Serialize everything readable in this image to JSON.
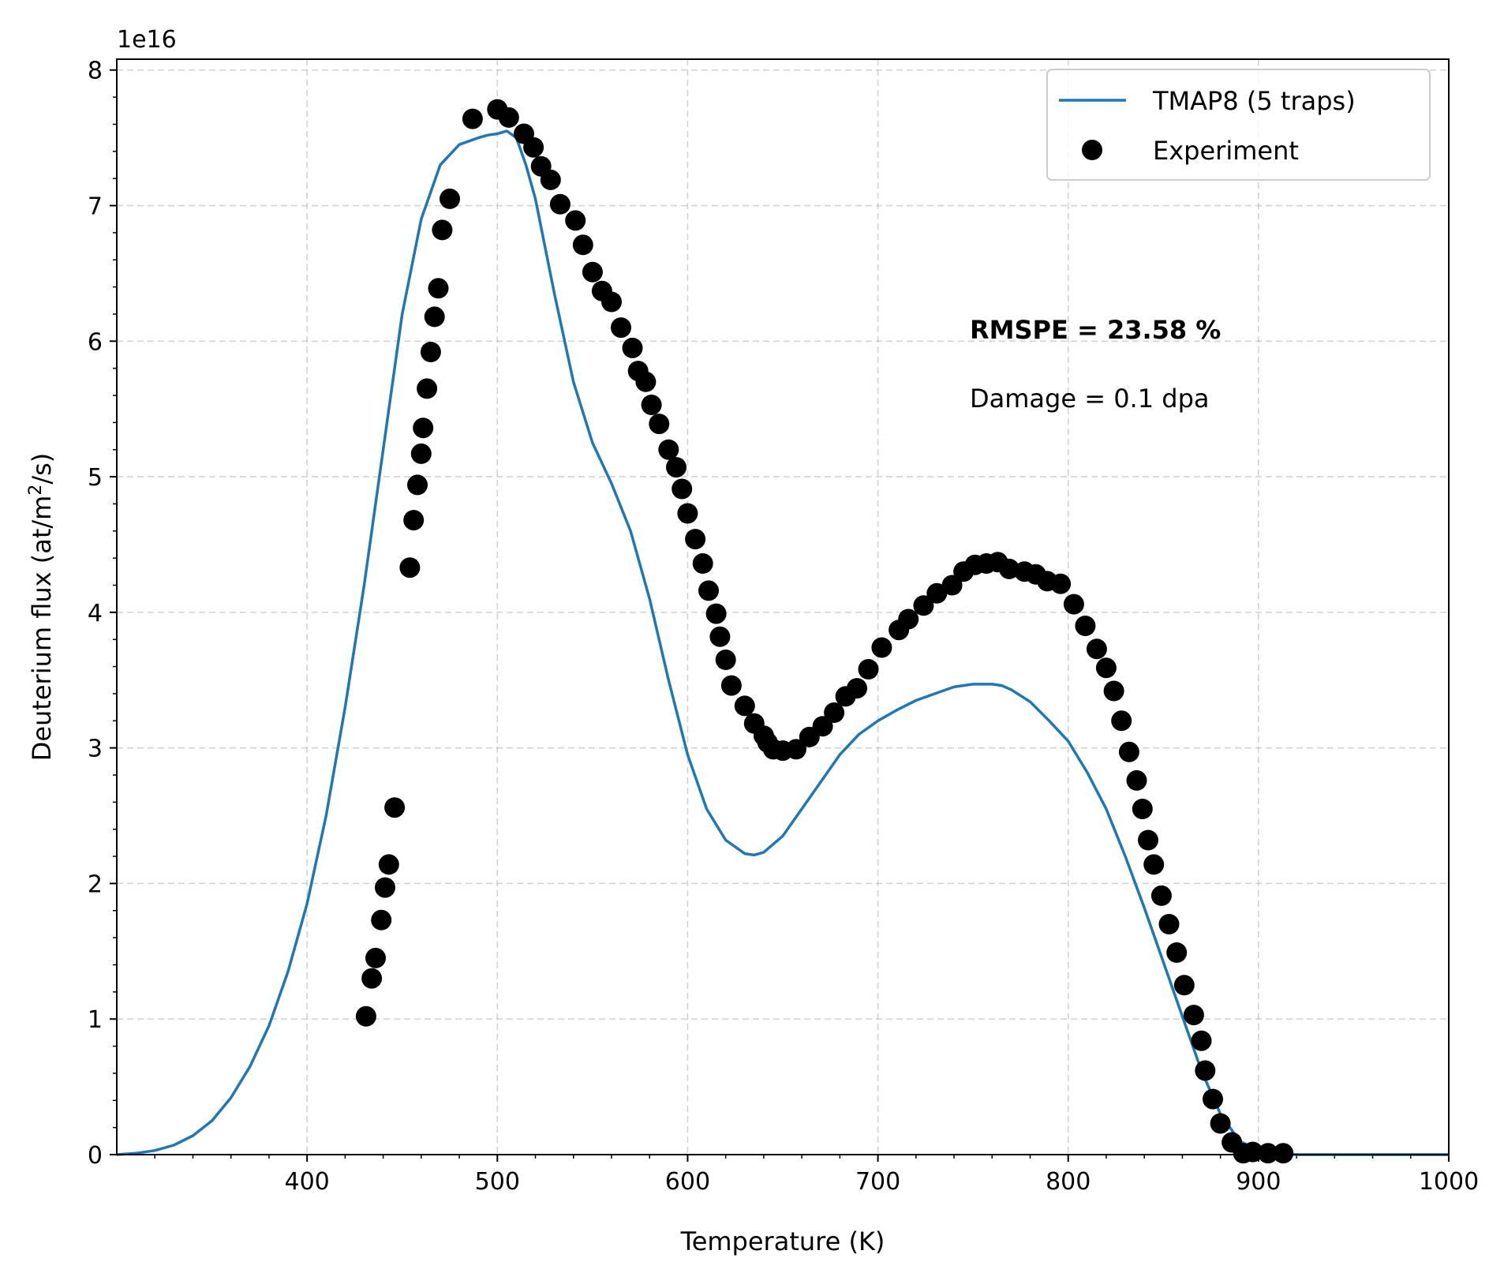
{
  "chart_data": {
    "type": "line",
    "xlabel": "Temperature (K)",
    "ylabel_main": "Deuterium flux (at/m",
    "ylabel_sup": "2",
    "ylabel_tail": "/s)",
    "offset_text": "1e16",
    "xlim": [
      300,
      1000
    ],
    "ylim": [
      0,
      8.08
    ],
    "y_scale_factor": "1e16",
    "xticks": [
      400,
      500,
      600,
      700,
      800,
      900,
      1000
    ],
    "yticks": [
      0,
      1,
      2,
      3,
      4,
      5,
      6,
      7,
      8
    ],
    "grid": true,
    "legend_position": "top-right",
    "series": [
      {
        "name": "TMAP8 (5 traps)",
        "type": "line",
        "color": "#1f77b4",
        "x": [
          300,
          310,
          320,
          330,
          340,
          350,
          360,
          370,
          380,
          390,
          400,
          410,
          420,
          430,
          440,
          450,
          460,
          470,
          480,
          490,
          495,
          500,
          505,
          510,
          515,
          520,
          530,
          540,
          550,
          560,
          570,
          580,
          590,
          600,
          610,
          620,
          630,
          635,
          640,
          650,
          660,
          670,
          680,
          690,
          700,
          710,
          720,
          730,
          740,
          750,
          760,
          765,
          770,
          780,
          790,
          800,
          810,
          820,
          830,
          840,
          850,
          860,
          870,
          880,
          890,
          900,
          910,
          920,
          930,
          950,
          1000
        ],
        "y": [
          0,
          0.01,
          0.03,
          0.07,
          0.14,
          0.25,
          0.42,
          0.65,
          0.95,
          1.35,
          1.85,
          2.5,
          3.3,
          4.2,
          5.2,
          6.2,
          6.9,
          7.3,
          7.45,
          7.5,
          7.52,
          7.53,
          7.55,
          7.5,
          7.3,
          7.05,
          6.35,
          5.7,
          5.25,
          4.95,
          4.6,
          4.1,
          3.5,
          2.95,
          2.55,
          2.32,
          2.22,
          2.21,
          2.23,
          2.35,
          2.55,
          2.75,
          2.95,
          3.1,
          3.2,
          3.28,
          3.35,
          3.4,
          3.45,
          3.47,
          3.47,
          3.46,
          3.43,
          3.34,
          3.2,
          3.05,
          2.82,
          2.55,
          2.2,
          1.82,
          1.42,
          1.02,
          0.62,
          0.3,
          0.1,
          0.03,
          0.01,
          0,
          0,
          0,
          0
        ]
      },
      {
        "name": "Experiment",
        "type": "scatter",
        "color": "#000000",
        "x": [
          431,
          434,
          436,
          439,
          441,
          443,
          446,
          454,
          456,
          458,
          460,
          461,
          463,
          465,
          467,
          469,
          471,
          475,
          487,
          500,
          506,
          514,
          519,
          523,
          528,
          533,
          541,
          545,
          550,
          555,
          560,
          565,
          571,
          574,
          578,
          581,
          585,
          590,
          594,
          597,
          600,
          604,
          608,
          611,
          615,
          617,
          620,
          623,
          630,
          635,
          640,
          642,
          645,
          650,
          657,
          664,
          671,
          677,
          683,
          689,
          695,
          702,
          711,
          716,
          724,
          731,
          739,
          745,
          751,
          757,
          763,
          769,
          777,
          783,
          789,
          796,
          803,
          809,
          815,
          820,
          824,
          828,
          832,
          836,
          839,
          842,
          845,
          849,
          853,
          857,
          861,
          866,
          870,
          872,
          876,
          880,
          886,
          892,
          897,
          905,
          913
        ],
        "y": [
          1.02,
          1.3,
          1.45,
          1.73,
          1.97,
          2.14,
          2.56,
          4.33,
          4.68,
          4.94,
          5.17,
          5.36,
          5.65,
          5.92,
          6.18,
          6.39,
          6.82,
          7.05,
          7.64,
          7.71,
          7.65,
          7.53,
          7.43,
          7.29,
          7.19,
          7.01,
          6.89,
          6.71,
          6.51,
          6.37,
          6.29,
          6.1,
          5.95,
          5.78,
          5.7,
          5.53,
          5.39,
          5.2,
          5.07,
          4.91,
          4.73,
          4.54,
          4.36,
          4.16,
          3.99,
          3.82,
          3.65,
          3.46,
          3.31,
          3.18,
          3.09,
          3.04,
          2.99,
          2.98,
          2.99,
          3.08,
          3.16,
          3.26,
          3.38,
          3.44,
          3.58,
          3.74,
          3.87,
          3.95,
          4.05,
          4.14,
          4.2,
          4.3,
          4.35,
          4.36,
          4.37,
          4.32,
          4.3,
          4.28,
          4.23,
          4.21,
          4.06,
          3.9,
          3.73,
          3.59,
          3.42,
          3.2,
          2.97,
          2.76,
          2.55,
          2.32,
          2.14,
          1.91,
          1.7,
          1.49,
          1.25,
          1.03,
          0.84,
          0.62,
          0.41,
          0.23,
          0.09,
          0.01,
          0.02,
          0.01,
          0.01
        ]
      }
    ],
    "annotations": [
      {
        "text": "RMSPE = 23.58 %",
        "bold": true
      },
      {
        "text": "Damage = 0.1 dpa",
        "bold": false
      }
    ]
  }
}
